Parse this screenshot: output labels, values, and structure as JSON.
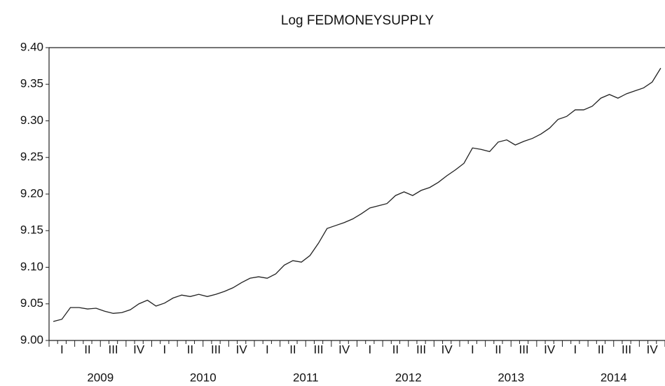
{
  "chart_data": {
    "type": "line",
    "title": "Log FEDMONEYSUPPLY",
    "quarter_labels": [
      "I",
      "II",
      "III",
      "IV",
      "I",
      "II",
      "III",
      "IV",
      "I",
      "II",
      "III",
      "IV",
      "I",
      "II",
      "III",
      "IV",
      "I",
      "II",
      "III",
      "IV",
      "I",
      "II",
      "III",
      "IV"
    ],
    "year_labels": [
      "2009",
      "2010",
      "2011",
      "2012",
      "2013",
      "2014"
    ],
    "values": [
      9.026,
      9.029,
      9.045,
      9.045,
      9.043,
      9.044,
      9.04,
      9.037,
      9.038,
      9.042,
      9.05,
      9.055,
      9.047,
      9.051,
      9.058,
      9.062,
      9.06,
      9.063,
      9.06,
      9.063,
      9.067,
      9.072,
      9.079,
      9.085,
      9.087,
      9.085,
      9.091,
      9.103,
      9.109,
      9.107,
      9.116,
      9.133,
      9.153,
      9.157,
      9.161,
      9.166,
      9.173,
      9.181,
      9.184,
      9.187,
      9.198,
      9.203,
      9.198,
      9.205,
      9.209,
      9.216,
      9.225,
      9.233,
      9.242,
      9.263,
      9.261,
      9.258,
      9.271,
      9.274,
      9.267,
      9.272,
      9.276,
      9.282,
      9.29,
      9.302,
      9.306,
      9.315,
      9.315,
      9.32,
      9.331,
      9.336,
      9.331,
      9.337,
      9.341,
      9.345,
      9.353,
      9.372
    ],
    "color": "#222222",
    "ylim": [
      9.0,
      9.4
    ],
    "yticks": [
      {
        "value": 9.0,
        "label": "9.00"
      },
      9.05,
      {
        "value": 9.1,
        "label": "9.10"
      },
      9.15,
      {
        "value": 9.2,
        "label": "9.20"
      },
      9.25,
      {
        "value": 9.3,
        "label": "9.30"
      },
      9.35,
      {
        "value": 9.4,
        "label": "9.40"
      }
    ]
  }
}
